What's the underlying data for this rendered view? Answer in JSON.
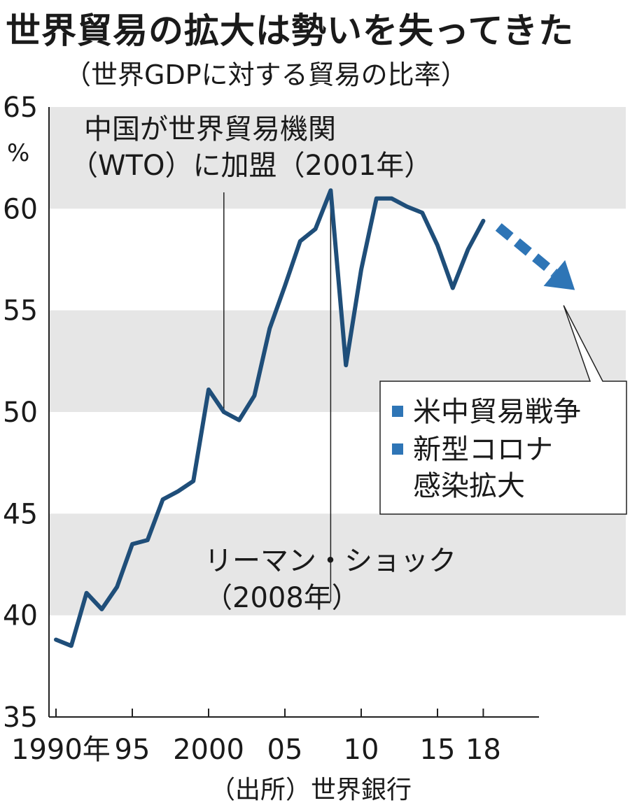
{
  "title": "世界貿易の拡大は勢いを失ってきた",
  "subtitle": "（世界GDPに対する貿易の比率）",
  "source": "（出所）世界銀行",
  "colors": {
    "line": "#1f4e79",
    "arrow": "#2e75b6",
    "band": "#e6e6e6",
    "legend_marker": "#2e75b6"
  },
  "chart_data": {
    "type": "line",
    "title": "世界貿易の拡大は勢いを失ってきた",
    "subtitle": "（世界GDPに対する貿易の比率）",
    "ylabel": "%",
    "ylim": [
      35,
      65
    ],
    "xlim": [
      1990,
      2024
    ],
    "yticks": [
      {
        "value": 65,
        "label": "65"
      },
      {
        "value": 60,
        "label": "60"
      },
      {
        "value": 55,
        "label": "55"
      },
      {
        "value": 50,
        "label": "50"
      },
      {
        "value": 45,
        "label": "45"
      },
      {
        "value": 40,
        "label": "40"
      },
      {
        "value": 35,
        "label": "35"
      }
    ],
    "xticks": [
      {
        "value": 1990,
        "label": "1990年"
      },
      {
        "value": 1995,
        "label": "95"
      },
      {
        "value": 2000,
        "label": "2000"
      },
      {
        "value": 2005,
        "label": "05"
      },
      {
        "value": 2010,
        "label": "10"
      },
      {
        "value": 2015,
        "label": "15"
      },
      {
        "value": 2018,
        "label": "18"
      }
    ],
    "grid": "alternating horizontal bands",
    "series": [
      {
        "x": [
          1990,
          1991,
          1992,
          1993,
          1994,
          1995,
          1996,
          1997,
          1998,
          1999,
          2000,
          2001,
          2002,
          2003,
          2004,
          2005,
          2006,
          2007,
          2008,
          2009,
          2010,
          2011,
          2012,
          2013,
          2014,
          2015,
          2016,
          2017,
          2018
        ],
        "values": [
          38.8,
          38.5,
          41.1,
          40.3,
          41.4,
          43.5,
          43.7,
          45.7,
          46.1,
          46.6,
          51.1,
          50.0,
          49.6,
          50.8,
          54.1,
          56.2,
          58.4,
          59.0,
          60.9,
          52.3,
          57.0,
          60.5,
          60.5,
          60.1,
          59.8,
          58.2,
          56.1,
          58.0,
          59.4
        ]
      }
    ],
    "trend_arrow": {
      "x": [
        2019,
        2024
      ],
      "y": [
        59.1,
        56.0
      ],
      "style": "dashed-arrow"
    },
    "annotations": [
      {
        "x": 2001,
        "y": 50.0,
        "lines": [
          "中国が世界貿易機関",
          "（WTO）に加盟（2001年）"
        ]
      },
      {
        "x": 2008,
        "y": 60.9,
        "lines": [
          "リーマン・ショック",
          "（2008年）"
        ]
      }
    ],
    "legend": {
      "placement": "right",
      "items": [
        {
          "lines": [
            "米中貿易戦争"
          ]
        },
        {
          "lines": [
            "新型コロナ",
            "感染拡大"
          ]
        }
      ]
    }
  }
}
